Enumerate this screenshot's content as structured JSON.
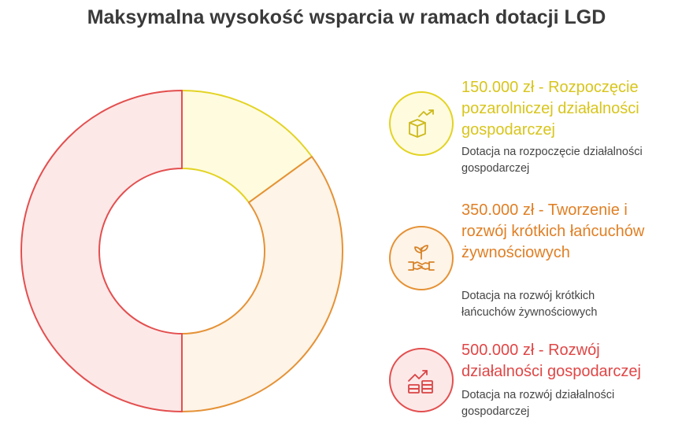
{
  "chart_data": {
    "type": "pie",
    "title": "Maksymalna wysokość wsparcia w ramach dotacji LGD",
    "unit": "zł",
    "categories": [
      "150.000 zł - Rozpoczęcie pozarolniczej działalności gospodarczej",
      "350.000 zł - Tworzenie i rozwój krótkich łańcuchów żywnościowych",
      "500.000 zł - Rozwój działalności gospodarczej"
    ],
    "values": [
      150000,
      350000,
      500000
    ],
    "descriptions": [
      "Dotacja na rozpoczęcie działalności gospodarczej",
      "Dotacja na rozwój krótkich łańcuchów żywnościowych",
      "Dotacja na rozwój działalności gospodarczej"
    ],
    "colors": [
      "#e3d323",
      "#e59236",
      "#e34f4f"
    ],
    "fills": [
      "#fefbdf",
      "#fef4e8",
      "#fde8e8"
    ],
    "icons": [
      "box-growth-icon",
      "sprout-handshake-icon",
      "coins-growth-icon"
    ],
    "start_angle": "12 o'clock",
    "direction": "clockwise",
    "legend_position": "right"
  }
}
